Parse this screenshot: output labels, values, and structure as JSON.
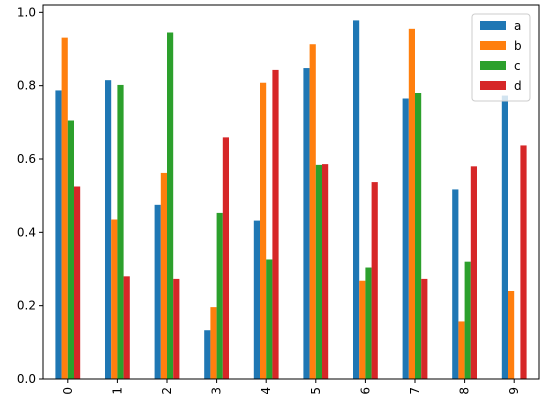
{
  "chart_data": {
    "type": "bar",
    "title": "",
    "xlabel": "",
    "ylabel": "",
    "categories": [
      "0",
      "1",
      "2",
      "3",
      "4",
      "5",
      "6",
      "7",
      "8",
      "9"
    ],
    "ylim": [
      0,
      1.02
    ],
    "yticks": [
      "0.0",
      "0.2",
      "0.4",
      "0.6",
      "0.8",
      "1.0"
    ],
    "grid": false,
    "legend_position": "top-right",
    "series": [
      {
        "name": "a",
        "color": "#1f77b4",
        "values": [
          0.787,
          0.815,
          0.475,
          0.133,
          0.432,
          0.848,
          0.978,
          0.765,
          0.517,
          0.773
        ]
      },
      {
        "name": "b",
        "color": "#ff7f0e",
        "values": [
          0.931,
          0.435,
          0.562,
          0.196,
          0.808,
          0.913,
          0.268,
          0.955,
          0.157,
          0.24
        ]
      },
      {
        "name": "c",
        "color": "#2ca02c",
        "values": [
          0.705,
          0.802,
          0.945,
          0.453,
          0.326,
          0.584,
          0.304,
          0.78,
          0.32,
          0.0
        ]
      },
      {
        "name": "d",
        "color": "#d62728",
        "values": [
          0.525,
          0.28,
          0.273,
          0.659,
          0.843,
          0.586,
          0.537,
          0.273,
          0.58,
          0.637
        ]
      }
    ]
  }
}
